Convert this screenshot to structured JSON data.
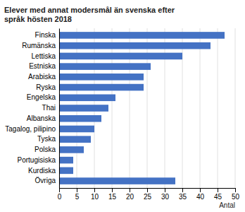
{
  "chart_data": {
    "type": "bar",
    "orientation": "horizontal",
    "title": "Elever med annat modersmål än svenska efter\nspråk hösten 2018",
    "categories": [
      "Övriga",
      "Kurdiska",
      "Portugisiska",
      "Polska",
      "Tyska",
      "Tagalog, pilipino",
      "Albanska",
      "Thai",
      "Engelska",
      "Ryska",
      "Arabiska",
      "Estniska",
      "Lettiska",
      "Rumänska",
      "Finska"
    ],
    "values": [
      33,
      4,
      4,
      7,
      9,
      10,
      12,
      14,
      16,
      24,
      24,
      26,
      35,
      43,
      47
    ],
    "color": "#4472C4",
    "xlabel": "Antal",
    "xlim": [
      0,
      50
    ],
    "xticks": [
      0,
      5,
      10,
      15,
      20,
      25,
      30,
      35,
      40,
      45,
      50
    ],
    "grid": true
  }
}
